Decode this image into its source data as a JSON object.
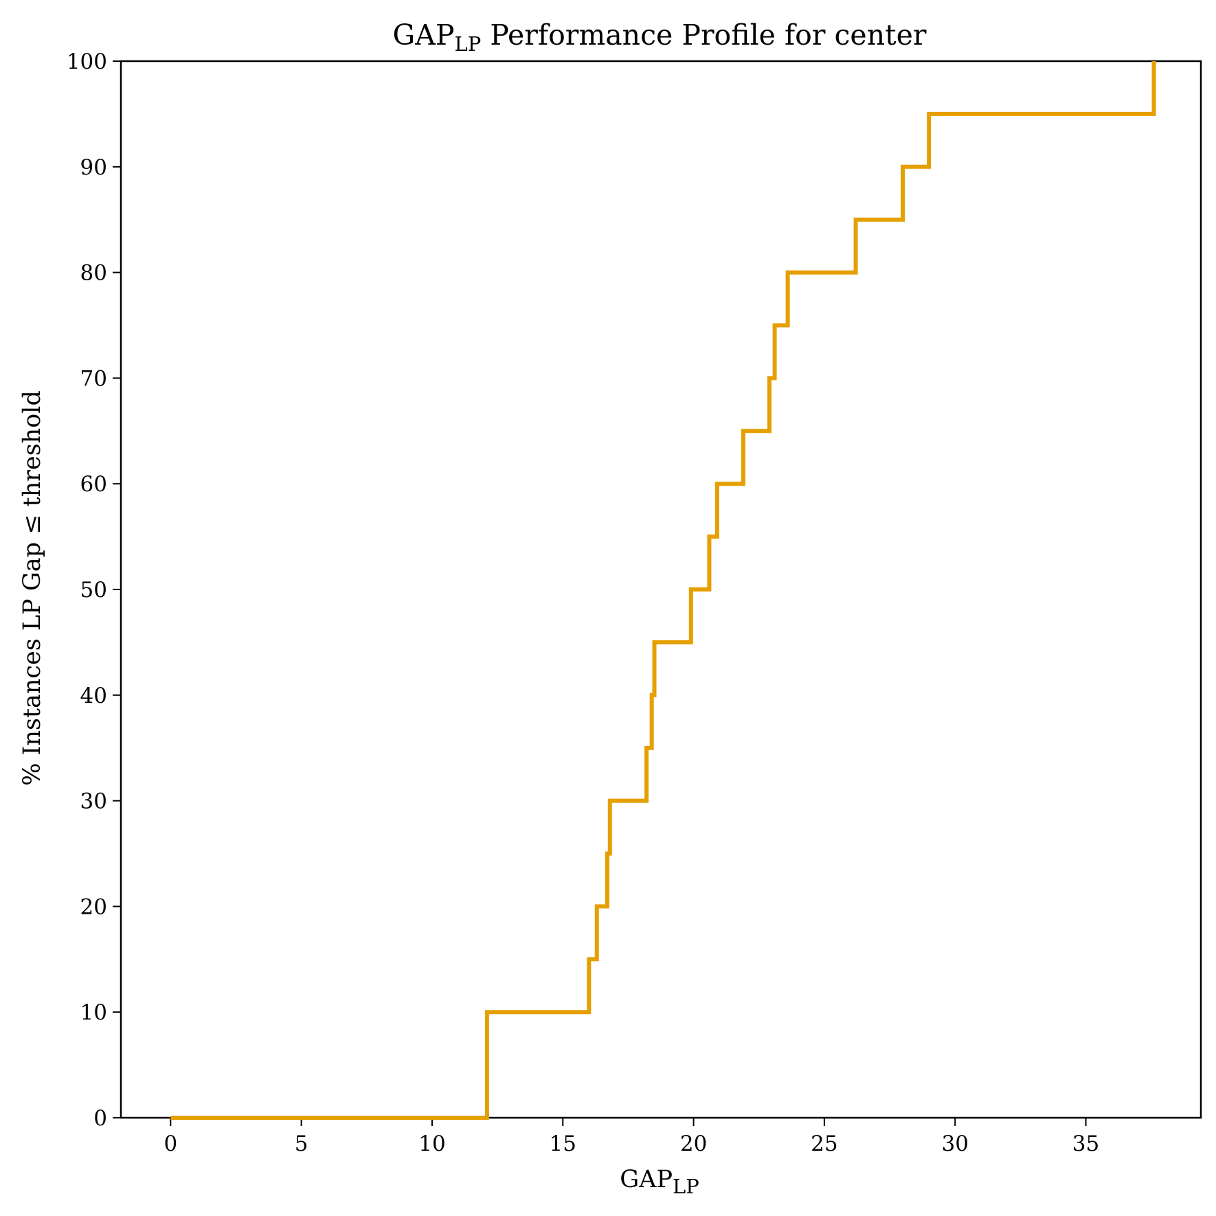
{
  "chart_data": {
    "type": "line",
    "step": "post",
    "title": {
      "main": "GAP",
      "sub": "LP",
      "rest": " Performance Profile for center"
    },
    "xlabel": {
      "main": "GAP",
      "sub": "LP"
    },
    "ylabel": "% Instances LP Gap ≤ threshold",
    "xlim": [
      -1.9,
      39.4
    ],
    "ylim": [
      0,
      100
    ],
    "xticks": [
      0,
      5,
      10,
      15,
      20,
      25,
      30,
      35
    ],
    "yticks": [
      0,
      10,
      20,
      30,
      40,
      50,
      60,
      70,
      80,
      90,
      100
    ],
    "grid": false,
    "legend": false,
    "series": [
      {
        "color": "#E69F00",
        "x": [
          0,
          12.1,
          16.0,
          16.3,
          16.7,
          16.8,
          18.2,
          18.4,
          18.5,
          19.9,
          20.6,
          20.9,
          21.9,
          22.9,
          23.1,
          23.6,
          26.2,
          28.0,
          29.0,
          37.6
        ],
        "y": [
          0,
          10,
          15,
          20,
          25,
          30,
          35,
          40,
          45,
          50,
          55,
          60,
          65,
          70,
          75,
          80,
          85,
          90,
          95,
          100
        ]
      }
    ]
  }
}
